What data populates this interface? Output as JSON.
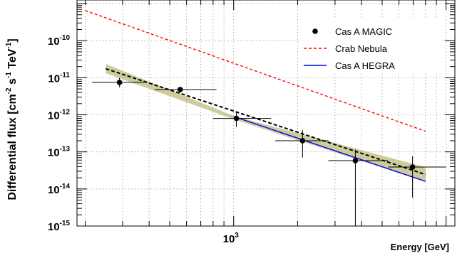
{
  "chart_data": {
    "type": "scatter",
    "xlabel": "Energy [GeV]",
    "ylabel": {
      "base": "Differential flux [cm",
      "sup1": "-2",
      "mid1": " s",
      "sup2": "-1",
      "mid2": " TeV",
      "sup3": "-1",
      "end": "]"
    },
    "x_scale": "log",
    "y_scale": "log",
    "xlim": [
      183,
      11000
    ],
    "ylim": [
      1e-15,
      1.25e-09
    ],
    "x_tick_labels": [
      {
        "value": 1000,
        "base": "10",
        "exp": "3"
      }
    ],
    "y_tick_labels": [
      {
        "value": 1e-15,
        "base": "10",
        "exp": "-15"
      },
      {
        "value": 1e-14,
        "base": "10",
        "exp": "-14"
      },
      {
        "value": 1e-13,
        "base": "10",
        "exp": "-13"
      },
      {
        "value": 1e-12,
        "base": "10",
        "exp": "-12"
      },
      {
        "value": 1e-11,
        "base": "10",
        "exp": "-11"
      },
      {
        "value": 1e-10,
        "base": "10",
        "exp": "-10"
      }
    ],
    "grid": true,
    "legend_position": "top-right",
    "series": [
      {
        "name": "Cas A MAGIC",
        "kind": "points",
        "color": "#000000",
        "points": [
          {
            "x": 290,
            "y": 7.5e-12,
            "xlo": 215,
            "xhi": 380,
            "ylo": 5.5e-12,
            "yhi": 1e-11
          },
          {
            "x": 560,
            "y": 4.8e-12,
            "xlo": 425,
            "xhi": 830,
            "ylo": 4e-12,
            "yhi": 5.6e-12
          },
          {
            "x": 1030,
            "y": 8e-13,
            "xlo": 800,
            "xhi": 1500,
            "ylo": 4.7e-13,
            "yhi": 1.18e-12
          },
          {
            "x": 2110,
            "y": 2e-13,
            "xlo": 1570,
            "xhi": 2790,
            "ylo": 7e-14,
            "yhi": 3.9e-13
          },
          {
            "x": 3740,
            "y": 5.8e-14,
            "xlo": 2790,
            "xhi": 5330,
            "ylo": 1e-15,
            "yhi": 1.15e-13
          },
          {
            "x": 6950,
            "y": 3.9e-14,
            "xlo": 5340,
            "xhi": 10000,
            "ylo": 5.8e-15,
            "yhi": 7.6e-14
          }
        ]
      },
      {
        "name": "Crab Nebula",
        "kind": "line",
        "color": "#ff0000",
        "style": "dashed",
        "x": [
          200,
          8000
        ],
        "y": [
          6.5e-10,
          3.6e-13
        ]
      },
      {
        "name": "Cas A HEGRA",
        "kind": "line",
        "color": "#0000ff",
        "style": "solid",
        "x": [
          1000,
          8000
        ],
        "y": [
          9e-13,
          1.6e-14
        ]
      },
      {
        "name": "",
        "kind": "fit",
        "color": "#000000",
        "style": "dashed",
        "x": [
          250,
          8000
        ],
        "y": [
          1.75e-11,
          2.45e-14
        ]
      },
      {
        "name": "",
        "kind": "band",
        "color": "#c8c890",
        "x": [
          250,
          1000,
          8000
        ],
        "ylo": [
          1.32e-11,
          7.6e-13,
          1.55e-14
        ],
        "yhi": [
          2.35e-11,
          9.3e-13,
          3.85e-14
        ]
      }
    ]
  }
}
